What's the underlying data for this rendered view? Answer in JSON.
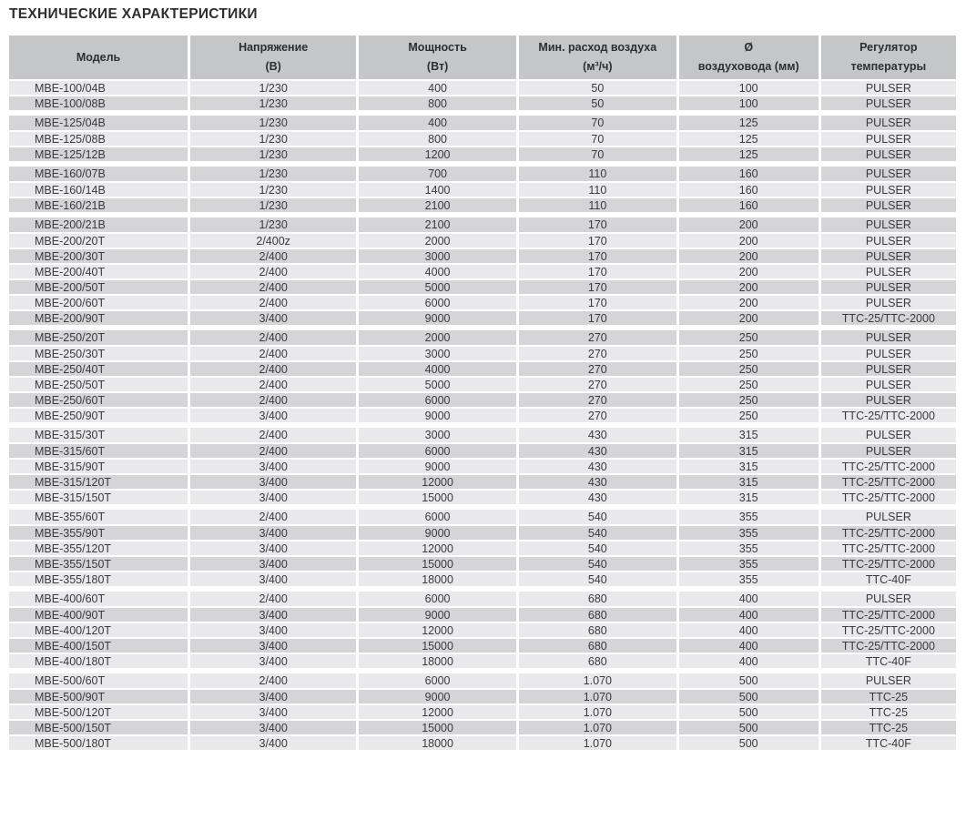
{
  "title": "ТЕХНИЧЕСКИЕ ХАРАКТЕРИСТИКИ",
  "colors": {
    "header_bg": "#c5c6c8",
    "row_light": "#e9e9eb",
    "row_dark": "#d5d5d7",
    "gap": "#ffffff",
    "text": "#3a3a3c",
    "title_text": "#2e2e30"
  },
  "table": {
    "columns": [
      {
        "key": "model",
        "line1": "Модель",
        "line2": ""
      },
      {
        "key": "voltage",
        "line1": "Напряжение",
        "line2": "(В)"
      },
      {
        "key": "power",
        "line1": "Мощность",
        "line2": "(Вт)"
      },
      {
        "key": "airflow",
        "line1": "Мин. расход воздуха",
        "line2": "(м³/ч)"
      },
      {
        "key": "duct-diameter",
        "line1": "Ø",
        "line2": "воздуховода (мм)"
      },
      {
        "key": "temp-regulator",
        "line1": "Регулятор",
        "line2": "температуры"
      }
    ],
    "groups": [
      {
        "series": "MBE-100",
        "rows": [
          [
            "MBE-100/04B",
            "1/230",
            "400",
            "50",
            "100",
            "PULSER"
          ],
          [
            "MBE-100/08B",
            "1/230",
            "800",
            "50",
            "100",
            "PULSER"
          ]
        ]
      },
      {
        "series": "MBE-125",
        "rows": [
          [
            "MBE-125/04B",
            "1/230",
            "400",
            "70",
            "125",
            "PULSER"
          ],
          [
            "MBE-125/08B",
            "1/230",
            "800",
            "70",
            "125",
            "PULSER"
          ],
          [
            "MBE-125/12B",
            "1/230",
            "1200",
            "70",
            "125",
            "PULSER"
          ]
        ]
      },
      {
        "series": "MBE-160",
        "rows": [
          [
            "MBE-160/07B",
            "1/230",
            "700",
            "110",
            "160",
            "PULSER"
          ],
          [
            "MBE-160/14B",
            "1/230",
            "1400",
            "110",
            "160",
            "PULSER"
          ],
          [
            "MBE-160/21B",
            "1/230",
            "2100",
            "110",
            "160",
            "PULSER"
          ]
        ]
      },
      {
        "series": "MBE-200",
        "rows": [
          [
            "MBE-200/21B",
            "1/230",
            "2100",
            "170",
            "200",
            "PULSER"
          ],
          [
            "MBE-200/20T",
            "2/400z",
            "2000",
            "170",
            "200",
            "PULSER"
          ],
          [
            "MBE-200/30T",
            "2/400",
            "3000",
            "170",
            "200",
            "PULSER"
          ],
          [
            "MBE-200/40T",
            "2/400",
            "4000",
            "170",
            "200",
            "PULSER"
          ],
          [
            "MBE-200/50T",
            "2/400",
            "5000",
            "170",
            "200",
            "PULSER"
          ],
          [
            "MBE-200/60T",
            "2/400",
            "6000",
            "170",
            "200",
            "PULSER"
          ],
          [
            "MBE-200/90T",
            "3/400",
            "9000",
            "170",
            "200",
            "TTC-25/TTC-2000"
          ]
        ]
      },
      {
        "series": "MBE-250",
        "rows": [
          [
            "MBE-250/20T",
            "2/400",
            "2000",
            "270",
            "250",
            "PULSER"
          ],
          [
            "MBE-250/30T",
            "2/400",
            "3000",
            "270",
            "250",
            "PULSER"
          ],
          [
            "MBE-250/40T",
            "2/400",
            "4000",
            "270",
            "250",
            "PULSER"
          ],
          [
            "MBE-250/50T",
            "2/400",
            "5000",
            "270",
            "250",
            "PULSER"
          ],
          [
            "MBE-250/60T",
            "2/400",
            "6000",
            "270",
            "250",
            "PULSER"
          ],
          [
            "MBE-250/90T",
            "3/400",
            "9000",
            "270",
            "250",
            "TTC-25/TTC-2000"
          ]
        ]
      },
      {
        "series": "MBE-315",
        "rows": [
          [
            "MBE-315/30T",
            "2/400",
            "3000",
            "430",
            "315",
            "PULSER"
          ],
          [
            "MBE-315/60T",
            "2/400",
            "6000",
            "430",
            "315",
            "PULSER"
          ],
          [
            "MBE-315/90T",
            "3/400",
            "9000",
            "430",
            "315",
            "TTC-25/TTC-2000"
          ],
          [
            "MBE-315/120T",
            "3/400",
            "12000",
            "430",
            "315",
            "TTC-25/TTC-2000"
          ],
          [
            "MBE-315/150T",
            "3/400",
            "15000",
            "430",
            "315",
            "TTC-25/TTC-2000"
          ]
        ]
      },
      {
        "series": "MBE-355",
        "rows": [
          [
            "MBE-355/60T",
            "2/400",
            "6000",
            "540",
            "355",
            "PULSER"
          ],
          [
            "MBE-355/90T",
            "3/400",
            "9000",
            "540",
            "355",
            "TTC-25/TTC-2000"
          ],
          [
            "MBE-355/120T",
            "3/400",
            "12000",
            "540",
            "355",
            "TTC-25/TTC-2000"
          ],
          [
            "MBE-355/150T",
            "3/400",
            "15000",
            "540",
            "355",
            "TTC-25/TTC-2000"
          ],
          [
            "MBE-355/180T",
            "3/400",
            "18000",
            "540",
            "355",
            "TTC-40F"
          ]
        ]
      },
      {
        "series": "MBE-400",
        "rows": [
          [
            "MBE-400/60T",
            "2/400",
            "6000",
            "680",
            "400",
            "PULSER"
          ],
          [
            "MBE-400/90T",
            "3/400",
            "9000",
            "680",
            "400",
            "TTC-25/TTC-2000"
          ],
          [
            "MBE-400/120T",
            "3/400",
            "12000",
            "680",
            "400",
            "TTC-25/TTC-2000"
          ],
          [
            "MBE-400/150T",
            "3/400",
            "15000",
            "680",
            "400",
            "TTC-25/TTC-2000"
          ],
          [
            "MBE-400/180T",
            "3/400",
            "18000",
            "680",
            "400",
            "TTC-40F"
          ]
        ]
      },
      {
        "series": "MBE-500",
        "rows": [
          [
            "MBE-500/60T",
            "2/400",
            "6000",
            "1.070",
            "500",
            "PULSER"
          ],
          [
            "MBE-500/90T",
            "3/400",
            "9000",
            "1.070",
            "500",
            "TTC-25"
          ],
          [
            "MBE-500/120T",
            "3/400",
            "12000",
            "1.070",
            "500",
            "TTC-25"
          ],
          [
            "MBE-500/150T",
            "3/400",
            "15000",
            "1.070",
            "500",
            "TTC-25"
          ],
          [
            "MBE-500/180T",
            "3/400",
            "18000",
            "1.070",
            "500",
            "TTC-40F"
          ]
        ]
      }
    ]
  }
}
